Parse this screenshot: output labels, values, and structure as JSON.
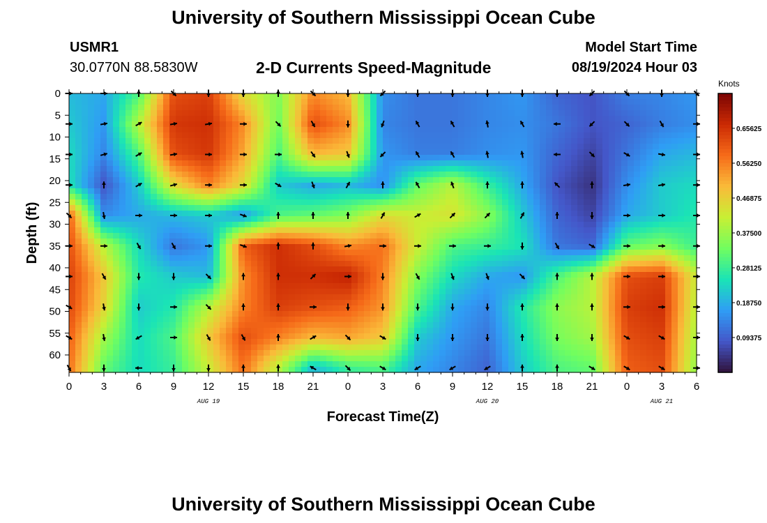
{
  "header": {
    "title": "University of Southern Mississippi Ocean Cube",
    "station_id": "USMR1",
    "coordinates": "30.0770N  88.5830W",
    "subtitle": "2-D Currents Speed-Magnitude",
    "model_start_label": "Model Start Time",
    "model_start_value": "08/19/2024 Hour 03"
  },
  "footer": {
    "title": "University of Southern Mississippi Ocean Cube"
  },
  "colors": {
    "scale": [
      "#30123b",
      "#4457c9",
      "#2f9df5",
      "#1ae4b6",
      "#71fe5f",
      "#c8ef34",
      "#faba39",
      "#f66b19",
      "#cb2a04",
      "#7a0403"
    ]
  },
  "chart_data": {
    "type": "heatmap",
    "title": "2-D Currents Speed-Magnitude",
    "xlabel": "Forecast Time(Z)",
    "ylabel": "Depth (ft)",
    "x_hours": [
      0,
      3,
      6,
      9,
      12,
      15,
      18,
      21,
      24,
      27,
      30,
      33,
      36,
      39,
      42,
      45,
      48,
      51,
      54
    ],
    "x_tick_labels": [
      "0",
      "3",
      "6",
      "9",
      "12",
      "15",
      "18",
      "21",
      "0",
      "3",
      "6",
      "9",
      "12",
      "15",
      "18",
      "21",
      "0",
      "3",
      "6"
    ],
    "date_labels": [
      {
        "label": "AUG 19",
        "hour": 12
      },
      {
        "label": "AUG 20",
        "hour": 36
      },
      {
        "label": "AUG 21",
        "hour": 51
      }
    ],
    "y_depths": [
      0,
      5,
      10,
      15,
      20,
      25,
      30,
      35,
      40,
      45,
      50,
      55,
      60
    ],
    "ylim": [
      0,
      64
    ],
    "xlim": [
      0,
      54
    ],
    "colorbar": {
      "label": "Knots",
      "ticks": [
        "0.65625",
        "0.56250",
        "0.46875",
        "0.37500",
        "0.28125",
        "0.18750",
        "0.09375"
      ],
      "range": [
        0.0,
        0.75
      ]
    },
    "arrow_hours": [
      0,
      3,
      6,
      9,
      12,
      15,
      18,
      21,
      24,
      27,
      30,
      33,
      36,
      39,
      42,
      45,
      48,
      51,
      54
    ],
    "arrow_depths": [
      0,
      7,
      14,
      21,
      28,
      35,
      42,
      49,
      56,
      63
    ],
    "speed_field_note": "estimated speed (knots) at each arrow node, rows = depths, cols = hours",
    "speed": [
      [
        0.2,
        0.18,
        0.3,
        0.62,
        0.64,
        0.45,
        0.35,
        0.55,
        0.5,
        0.15,
        0.12,
        0.12,
        0.14,
        0.16,
        0.1,
        0.08,
        0.13,
        0.14,
        0.16
      ],
      [
        0.22,
        0.16,
        0.4,
        0.65,
        0.66,
        0.55,
        0.33,
        0.62,
        0.55,
        0.14,
        0.12,
        0.12,
        0.14,
        0.15,
        0.12,
        0.08,
        0.1,
        0.13,
        0.15
      ],
      [
        0.24,
        0.14,
        0.3,
        0.62,
        0.65,
        0.52,
        0.3,
        0.5,
        0.48,
        0.16,
        0.13,
        0.13,
        0.15,
        0.16,
        0.1,
        0.06,
        0.12,
        0.18,
        0.2
      ],
      [
        0.25,
        0.08,
        0.22,
        0.45,
        0.56,
        0.45,
        0.22,
        0.18,
        0.2,
        0.15,
        0.32,
        0.4,
        0.28,
        0.18,
        0.08,
        0.04,
        0.15,
        0.22,
        0.24
      ],
      [
        0.6,
        0.15,
        0.18,
        0.2,
        0.22,
        0.16,
        0.3,
        0.32,
        0.35,
        0.45,
        0.42,
        0.44,
        0.36,
        0.22,
        0.1,
        0.06,
        0.18,
        0.22,
        0.26
      ],
      [
        0.62,
        0.4,
        0.24,
        0.12,
        0.16,
        0.6,
        0.66,
        0.62,
        0.55,
        0.58,
        0.42,
        0.3,
        0.28,
        0.25,
        0.12,
        0.1,
        0.32,
        0.35,
        0.28
      ],
      [
        0.64,
        0.48,
        0.26,
        0.22,
        0.2,
        0.55,
        0.66,
        0.66,
        0.68,
        0.56,
        0.35,
        0.24,
        0.18,
        0.16,
        0.3,
        0.4,
        0.62,
        0.64,
        0.42
      ],
      [
        0.63,
        0.46,
        0.22,
        0.26,
        0.4,
        0.56,
        0.64,
        0.62,
        0.6,
        0.54,
        0.3,
        0.18,
        0.14,
        0.26,
        0.36,
        0.4,
        0.64,
        0.66,
        0.4
      ],
      [
        0.6,
        0.38,
        0.24,
        0.3,
        0.48,
        0.62,
        0.56,
        0.5,
        0.52,
        0.48,
        0.22,
        0.16,
        0.12,
        0.24,
        0.34,
        0.38,
        0.62,
        0.64,
        0.38
      ],
      [
        0.58,
        0.32,
        0.24,
        0.28,
        0.42,
        0.58,
        0.4,
        0.2,
        0.28,
        0.3,
        0.18,
        0.14,
        0.1,
        0.22,
        0.3,
        0.32,
        0.6,
        0.62,
        0.36
      ]
    ],
    "direction_deg": [
      [
        90,
        90,
        0,
        135,
        180,
        180,
        0,
        135,
        180,
        225,
        180,
        180,
        180,
        180,
        180,
        225,
        135,
        180,
        135
      ],
      [
        90,
        80,
        60,
        80,
        80,
        90,
        135,
        150,
        180,
        200,
        330,
        330,
        350,
        330,
        270,
        225,
        135,
        150,
        90
      ],
      [
        90,
        75,
        60,
        80,
        90,
        90,
        90,
        145,
        160,
        225,
        330,
        330,
        350,
        350,
        270,
        135,
        120,
        100,
        90
      ],
      [
        90,
        0,
        60,
        75,
        90,
        90,
        120,
        160,
        30,
        0,
        330,
        340,
        0,
        0,
        315,
        0,
        80,
        80,
        90
      ],
      [
        135,
        170,
        90,
        90,
        90,
        110,
        0,
        0,
        0,
        30,
        60,
        45,
        45,
        30,
        0,
        180,
        90,
        90,
        90
      ],
      [
        90,
        90,
        150,
        150,
        90,
        110,
        0,
        0,
        80,
        90,
        90,
        90,
        90,
        180,
        150,
        120,
        90,
        90,
        90
      ],
      [
        90,
        150,
        180,
        180,
        135,
        0,
        0,
        45,
        90,
        180,
        150,
        160,
        160,
        135,
        0,
        0,
        90,
        90,
        90
      ],
      [
        120,
        170,
        180,
        90,
        135,
        0,
        0,
        90,
        180,
        180,
        180,
        180,
        180,
        0,
        0,
        0,
        90,
        90,
        90
      ],
      [
        120,
        170,
        240,
        90,
        150,
        150,
        0,
        60,
        135,
        120,
        180,
        180,
        180,
        0,
        180,
        180,
        120,
        120,
        90
      ],
      [
        150,
        180,
        270,
        180,
        180,
        0,
        0,
        300,
        135,
        120,
        240,
        240,
        240,
        0,
        0,
        120,
        120,
        120,
        90
      ]
    ]
  }
}
